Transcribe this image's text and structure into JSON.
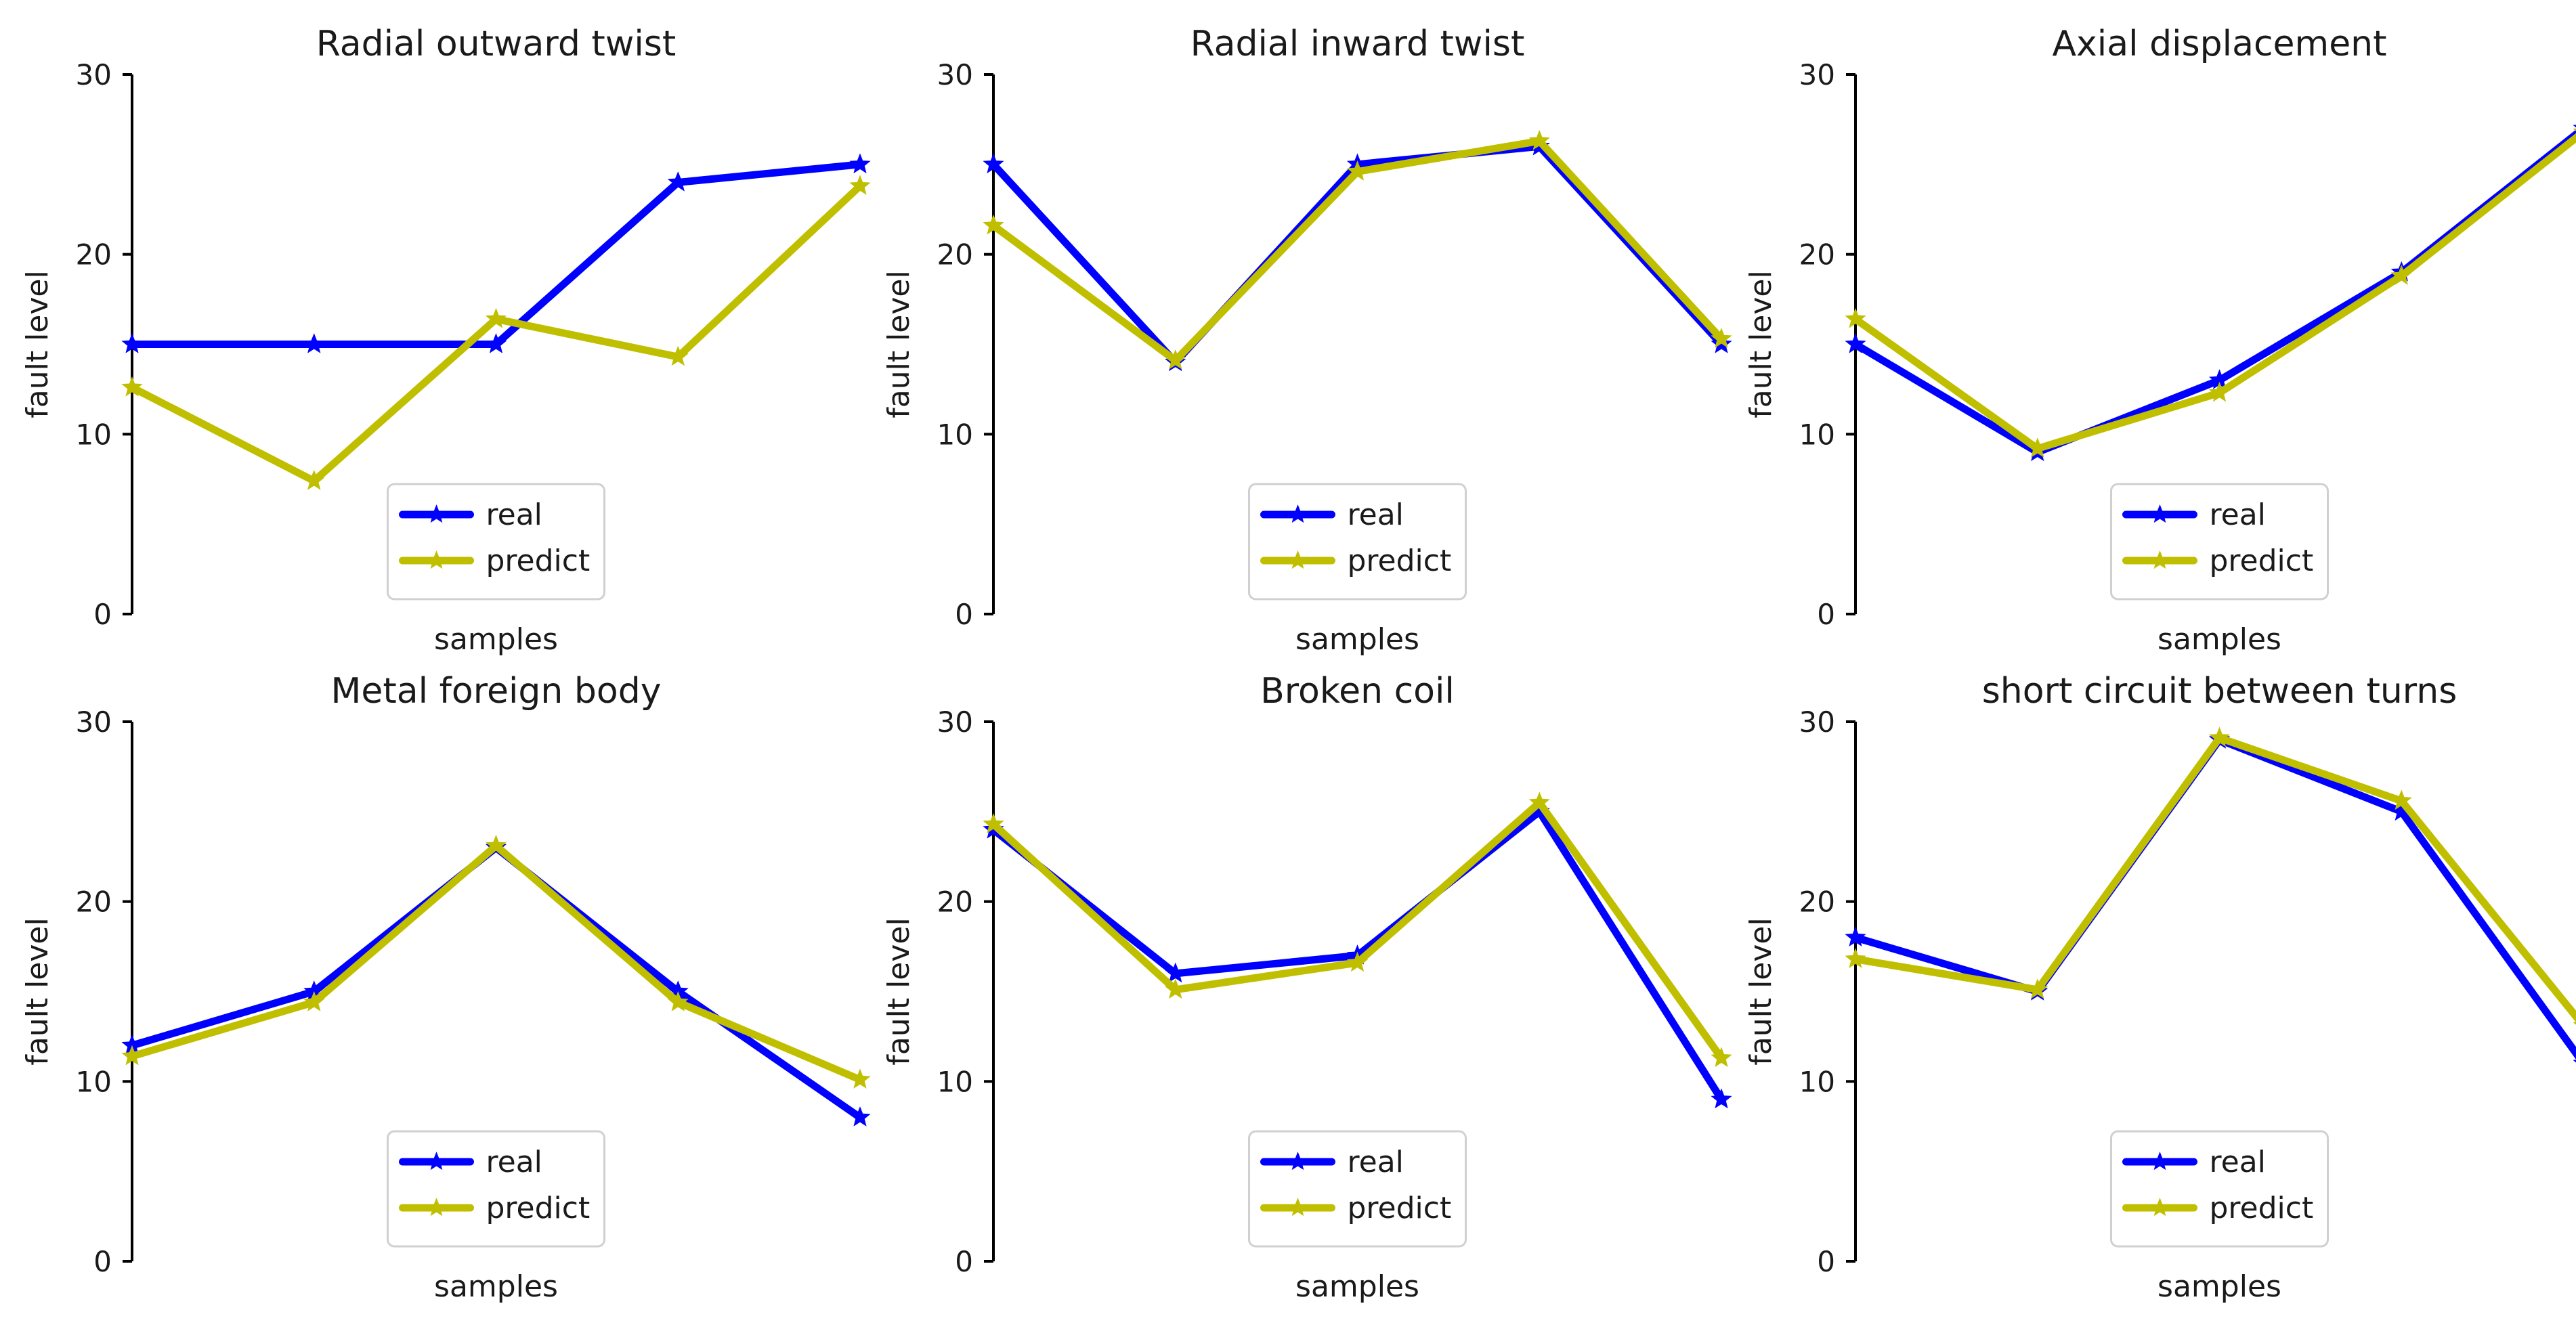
{
  "figure": {
    "background": "#ffffff"
  },
  "chart_data": [
    {
      "type": "line",
      "title": "Radial outward twist",
      "xlabel": "samples",
      "ylabel": "fault level",
      "ylim": [
        0,
        30
      ],
      "yticks": [
        0,
        10,
        20,
        30
      ],
      "xticks_visible": false,
      "x": [
        1,
        2,
        3,
        4,
        5
      ],
      "legend": "lower-center",
      "series": [
        {
          "name": "real",
          "color": "#0000ff",
          "marker": "star",
          "values": [
            15,
            15,
            15,
            24,
            25
          ]
        },
        {
          "name": "predict",
          "color": "#bfbf00",
          "marker": "star",
          "values": [
            12.6,
            7.4,
            16.4,
            14.3,
            23.8
          ]
        }
      ]
    },
    {
      "type": "line",
      "title": "Radial inward twist",
      "xlabel": "samples",
      "ylabel": "fault level",
      "ylim": [
        0,
        30
      ],
      "yticks": [
        0,
        10,
        20,
        30
      ],
      "xticks_visible": false,
      "x": [
        1,
        2,
        3,
        4,
        5
      ],
      "legend": "lower-center",
      "series": [
        {
          "name": "real",
          "color": "#0000ff",
          "marker": "star",
          "values": [
            25,
            14,
            25,
            26,
            15
          ]
        },
        {
          "name": "predict",
          "color": "#bfbf00",
          "marker": "star",
          "values": [
            21.6,
            14.1,
            24.6,
            26.3,
            15.3
          ]
        }
      ]
    },
    {
      "type": "line",
      "title": "Axial displacement",
      "xlabel": "samples",
      "ylabel": "fault level",
      "ylim": [
        0,
        30
      ],
      "yticks": [
        0,
        10,
        20,
        30
      ],
      "xticks_visible": false,
      "x": [
        1,
        2,
        3,
        4,
        5
      ],
      "legend": "lower-center",
      "series": [
        {
          "name": "real",
          "color": "#0000ff",
          "marker": "star",
          "values": [
            15,
            9,
            13,
            19,
            27
          ]
        },
        {
          "name": "predict",
          "color": "#bfbf00",
          "marker": "star",
          "values": [
            16.4,
            9.2,
            12.3,
            18.8,
            26.8
          ]
        }
      ]
    },
    {
      "type": "line",
      "title": "Metal foreign body",
      "xlabel": "samples",
      "ylabel": "fault level",
      "ylim": [
        0,
        30
      ],
      "yticks": [
        0,
        10,
        20,
        30
      ],
      "xticks_visible": false,
      "x": [
        1,
        2,
        3,
        4,
        5
      ],
      "legend": "lower-center",
      "series": [
        {
          "name": "real",
          "color": "#0000ff",
          "marker": "star",
          "values": [
            12,
            15,
            23,
            15,
            8
          ]
        },
        {
          "name": "predict",
          "color": "#bfbf00",
          "marker": "star",
          "values": [
            11.4,
            14.4,
            23.1,
            14.4,
            10.1
          ]
        }
      ]
    },
    {
      "type": "line",
      "title": "Broken coil",
      "xlabel": "samples",
      "ylabel": "fault level",
      "ylim": [
        0,
        30
      ],
      "yticks": [
        0,
        10,
        20,
        30
      ],
      "xticks_visible": false,
      "x": [
        1,
        2,
        3,
        4,
        5
      ],
      "legend": "lower-center",
      "series": [
        {
          "name": "real",
          "color": "#0000ff",
          "marker": "star",
          "values": [
            24,
            16,
            17,
            25,
            9
          ]
        },
        {
          "name": "predict",
          "color": "#bfbf00",
          "marker": "star",
          "values": [
            24.3,
            15.1,
            16.6,
            25.5,
            11.3
          ]
        }
      ]
    },
    {
      "type": "line",
      "title": "short circuit between turns",
      "xlabel": "samples",
      "ylabel": "fault level",
      "ylim": [
        0,
        30
      ],
      "yticks": [
        0,
        10,
        20,
        30
      ],
      "xticks_visible": false,
      "x": [
        1,
        2,
        3,
        4,
        5
      ],
      "legend": "lower-center",
      "series": [
        {
          "name": "real",
          "color": "#0000ff",
          "marker": "star",
          "values": [
            18,
            15,
            29,
            25,
            11
          ]
        },
        {
          "name": "predict",
          "color": "#bfbf00",
          "marker": "star",
          "values": [
            16.8,
            15.1,
            29.1,
            25.6,
            13.1
          ]
        }
      ]
    }
  ]
}
